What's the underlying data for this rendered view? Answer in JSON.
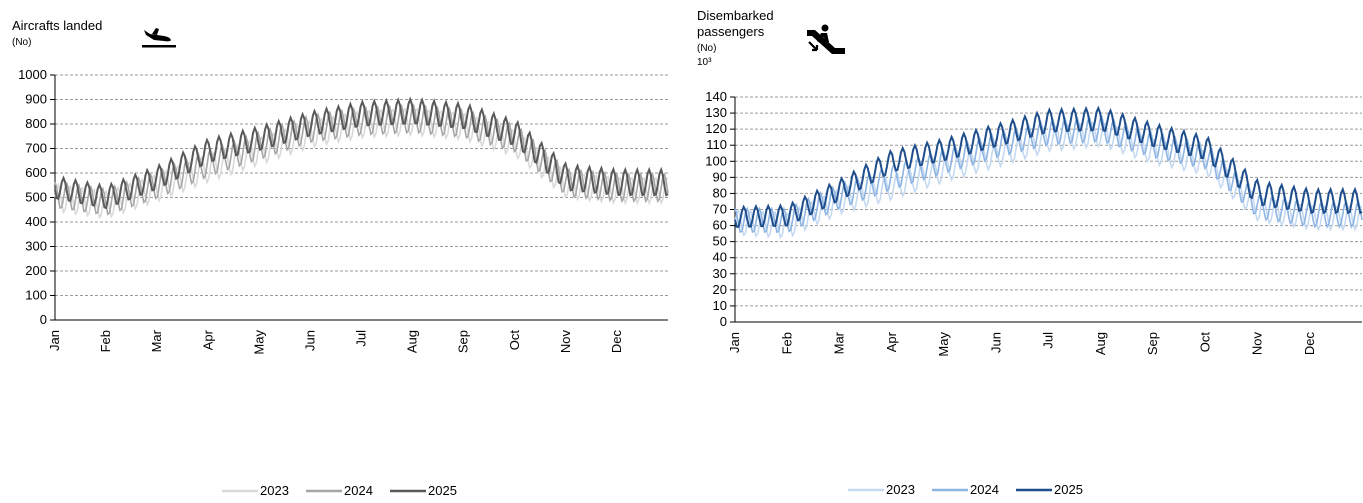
{
  "chart_data": [
    {
      "type": "line",
      "title": "Aircrafts landed",
      "unit": "(No)",
      "icon": "plane-landing-icon",
      "xlabel": "",
      "ylabel": "",
      "ylim": [
        0,
        1000
      ],
      "y_ticks": [
        "0",
        "100",
        "200",
        "300",
        "400",
        "500",
        "600",
        "700",
        "800",
        "900",
        "1000"
      ],
      "x_ticks": [
        "Jan",
        "Feb",
        "Mar",
        "Apr",
        "May",
        "Jun",
        "Jul",
        "Aug",
        "Sep",
        "Oct",
        "Nov",
        "Dec"
      ],
      "grid": true,
      "legend_position": "bottom",
      "x": [
        "Jan",
        "Feb",
        "Mar",
        "Apr",
        "May",
        "Jun",
        "Jul",
        "Aug",
        "Sep",
        "Oct",
        "Nov",
        "Dec"
      ],
      "series": [
        {
          "name": "2023",
          "color": "#d9d9d9",
          "values": [
            500,
            470,
            540,
            620,
            690,
            760,
            800,
            810,
            790,
            720,
            550,
            530
          ]
        },
        {
          "name": "2024",
          "color": "#a6a6a6",
          "values": [
            510,
            480,
            550,
            640,
            710,
            780,
            810,
            820,
            800,
            740,
            560,
            540
          ]
        },
        {
          "name": "2025",
          "color": "#595959",
          "values": [
            540,
            500,
            580,
            690,
            740,
            800,
            840,
            850,
            830,
            760,
            580,
            560
          ]
        }
      ]
    },
    {
      "type": "line",
      "title_lines": [
        "Disembarked",
        "passengers"
      ],
      "unit": "(No)",
      "scale": "10³",
      "icon": "escalator-down-icon",
      "xlabel": "",
      "ylabel": "",
      "ylim": [
        0,
        140
      ],
      "y_ticks": [
        "0",
        "10",
        "20",
        "30",
        "40",
        "50",
        "60",
        "70",
        "80",
        "90",
        "100",
        "110",
        "120",
        "130",
        "140"
      ],
      "x_ticks": [
        "Jan",
        "Feb",
        "Mar",
        "Apr",
        "May",
        "Jun",
        "Jul",
        "Aug",
        "Sep",
        "Oct",
        "Nov",
        "Dec"
      ],
      "grid": true,
      "legend_position": "bottom",
      "x": [
        "Jan",
        "Feb",
        "Mar",
        "Apr",
        "May",
        "Jun",
        "Jul",
        "Aug",
        "Sep",
        "Oct",
        "Nov",
        "Dec"
      ],
      "series": [
        {
          "name": "2023",
          "color": "#c5d9f1",
          "values": [
            62,
            60,
            75,
            84,
            95,
            104,
            114,
            117,
            106,
            99,
            70,
            65
          ]
        },
        {
          "name": "2024",
          "color": "#8db4e2",
          "values": [
            63,
            63,
            78,
            90,
            100,
            110,
            118,
            120,
            110,
            103,
            72,
            67
          ]
        },
        {
          "name": "2025",
          "color": "#1f4e8c",
          "values": [
            65,
            66,
            82,
            100,
            107,
            116,
            125,
            126,
            116,
            108,
            80,
            75
          ]
        }
      ]
    }
  ]
}
